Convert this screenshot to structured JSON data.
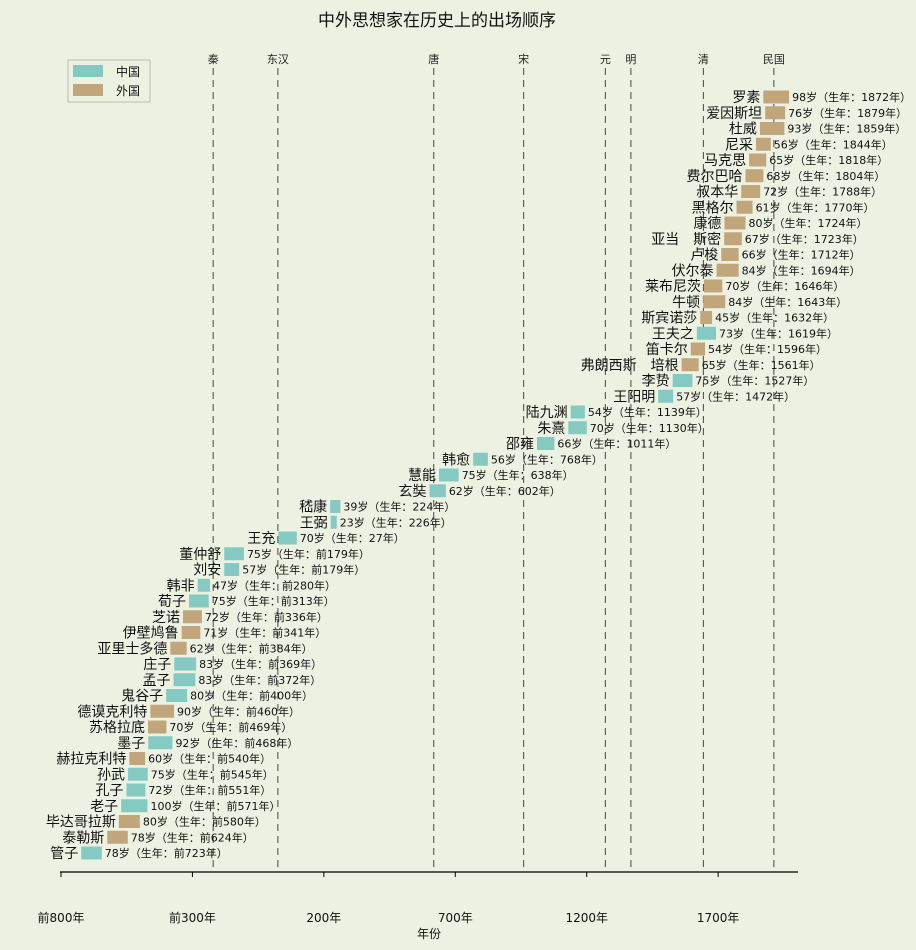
{
  "chart_data": {
    "type": "bar",
    "title": "中外思想家在历史上的出场顺序",
    "xlabel": "年份",
    "ylabel": "",
    "xlim": [
      -800,
      2000
    ],
    "xticks": [
      {
        "value": -800,
        "label": "前800年"
      },
      {
        "value": -300,
        "label": "前300年"
      },
      {
        "value": 200,
        "label": "200年"
      },
      {
        "value": 700,
        "label": "700年"
      },
      {
        "value": 1200,
        "label": "1200年"
      },
      {
        "value": 1700,
        "label": "1700年"
      }
    ],
    "legend": {
      "position": "top-left",
      "entries": [
        {
          "key": "china",
          "label": "中国"
        },
        {
          "key": "foreign",
          "label": "外国"
        }
      ]
    },
    "colors": {
      "china": "#85cac2",
      "foreign": "#c0a67a",
      "dynasty_line": "#555555",
      "axis": "#000000"
    },
    "dynasties": [
      {
        "name": "秦",
        "year": -221
      },
      {
        "name": "东汉",
        "year": 25
      },
      {
        "name": "唐",
        "year": 618
      },
      {
        "name": "宋",
        "year": 960
      },
      {
        "name": "元",
        "year": 1271
      },
      {
        "name": "明",
        "year": 1368
      },
      {
        "name": "清",
        "year": 1644
      },
      {
        "name": "民国",
        "year": 1912
      }
    ],
    "thinkers": [
      {
        "name": "罗素",
        "type": "foreign",
        "birth": 1872,
        "age": 98,
        "label": "98岁（生年：1872年）"
      },
      {
        "name": "爱因斯坦",
        "type": "foreign",
        "birth": 1879,
        "age": 76,
        "label": "76岁（生年：1879年）"
      },
      {
        "name": "杜威",
        "type": "foreign",
        "birth": 1859,
        "age": 93,
        "label": "93岁（生年：1859年）"
      },
      {
        "name": "尼采",
        "type": "foreign",
        "birth": 1844,
        "age": 56,
        "label": "56岁（生年：1844年）"
      },
      {
        "name": "马克思",
        "type": "foreign",
        "birth": 1818,
        "age": 65,
        "label": "65岁（生年：1818年）"
      },
      {
        "name": "费尔巴哈",
        "type": "foreign",
        "birth": 1804,
        "age": 68,
        "label": "68岁（生年：1804年）"
      },
      {
        "name": "叔本华",
        "type": "foreign",
        "birth": 1788,
        "age": 72,
        "label": "72岁（生年：1788年）"
      },
      {
        "name": "黑格尔",
        "type": "foreign",
        "birth": 1770,
        "age": 61,
        "label": "61岁（生年：1770年）"
      },
      {
        "name": "康德",
        "type": "foreign",
        "birth": 1724,
        "age": 80,
        "label": "80岁（生年：1724年）"
      },
      {
        "name": "亚当　斯密",
        "type": "foreign",
        "birth": 1723,
        "age": 67,
        "label": "67岁（生年：1723年）"
      },
      {
        "name": "卢梭",
        "type": "foreign",
        "birth": 1712,
        "age": 66,
        "label": "66岁（生年：1712年）"
      },
      {
        "name": "伏尔泰",
        "type": "foreign",
        "birth": 1694,
        "age": 84,
        "label": "84岁（生年：1694年）"
      },
      {
        "name": "莱布尼茨",
        "type": "foreign",
        "birth": 1646,
        "age": 70,
        "label": "70岁（生年：1646年）"
      },
      {
        "name": "牛顿",
        "type": "foreign",
        "birth": 1643,
        "age": 84,
        "label": "84岁（生年：1643年）"
      },
      {
        "name": "斯宾诺莎",
        "type": "foreign",
        "birth": 1632,
        "age": 45,
        "label": "45岁（生年：1632年）"
      },
      {
        "name": "王夫之",
        "type": "china",
        "birth": 1619,
        "age": 73,
        "label": "73岁（生年：1619年）"
      },
      {
        "name": "笛卡尔",
        "type": "foreign",
        "birth": 1596,
        "age": 54,
        "label": "54岁（生年：1596年）"
      },
      {
        "name": "弗朗西斯　培根",
        "type": "foreign",
        "birth": 1561,
        "age": 65,
        "label": "65岁（生年：1561年）"
      },
      {
        "name": "李贽",
        "type": "china",
        "birth": 1527,
        "age": 75,
        "label": "75岁（生年：1527年）"
      },
      {
        "name": "王阳明",
        "type": "china",
        "birth": 1472,
        "age": 57,
        "label": "57岁（生年：1472年）"
      },
      {
        "name": "陆九渊",
        "type": "china",
        "birth": 1139,
        "age": 54,
        "label": "54岁（生年：1139年）"
      },
      {
        "name": "朱熹",
        "type": "china",
        "birth": 1130,
        "age": 70,
        "label": "70岁（生年：1130年）"
      },
      {
        "name": "邵雍",
        "type": "china",
        "birth": 1011,
        "age": 66,
        "label": "66岁（生年：1011年）"
      },
      {
        "name": "韩愈",
        "type": "china",
        "birth": 768,
        "age": 56,
        "label": "56岁（生年：768年）"
      },
      {
        "name": "慧能",
        "type": "china",
        "birth": 638,
        "age": 75,
        "label": "75岁（生年：638年）"
      },
      {
        "name": "玄奘",
        "type": "china",
        "birth": 602,
        "age": 62,
        "label": "62岁（生年：602年）"
      },
      {
        "name": "嵇康",
        "type": "china",
        "birth": 224,
        "age": 39,
        "label": "39岁（生年：224年）"
      },
      {
        "name": "王弼",
        "type": "china",
        "birth": 226,
        "age": 23,
        "label": "23岁（生年：226年）"
      },
      {
        "name": "王充",
        "type": "china",
        "birth": 27,
        "age": 70,
        "label": "70岁（生年：27年）"
      },
      {
        "name": "董仲舒",
        "type": "china",
        "birth": -179,
        "age": 75,
        "label": "75岁（生年：前179年）"
      },
      {
        "name": "刘安",
        "type": "china",
        "birth": -179,
        "age": 57,
        "label": "57岁（生年：前179年）"
      },
      {
        "name": "韩非",
        "type": "china",
        "birth": -280,
        "age": 47,
        "label": "47岁（生年：前280年）"
      },
      {
        "name": "荀子",
        "type": "china",
        "birth": -313,
        "age": 75,
        "label": "75岁（生年：前313年）"
      },
      {
        "name": "芝诺",
        "type": "foreign",
        "birth": -336,
        "age": 72,
        "label": "72岁（生年：前336年）"
      },
      {
        "name": "伊壁鸠鲁",
        "type": "foreign",
        "birth": -341,
        "age": 71,
        "label": "71岁（生年：前341年）"
      },
      {
        "name": "亚里士多德",
        "type": "foreign",
        "birth": -384,
        "age": 62,
        "label": "62岁（生年：前384年）"
      },
      {
        "name": "庄子",
        "type": "china",
        "birth": -369,
        "age": 83,
        "label": "83岁（生年：前369年）"
      },
      {
        "name": "孟子",
        "type": "china",
        "birth": -372,
        "age": 83,
        "label": "83岁（生年：前372年）"
      },
      {
        "name": "鬼谷子",
        "type": "china",
        "birth": -400,
        "age": 80,
        "label": "80岁（生年：前400年）"
      },
      {
        "name": "德谟克利特",
        "type": "foreign",
        "birth": -460,
        "age": 90,
        "label": "90岁（生年：前460年）"
      },
      {
        "name": "苏格拉底",
        "type": "foreign",
        "birth": -469,
        "age": 70,
        "label": "70岁（生年：前469年）"
      },
      {
        "name": "墨子",
        "type": "china",
        "birth": -468,
        "age": 92,
        "label": "92岁（生年：前468年）"
      },
      {
        "name": "赫拉克利特",
        "type": "foreign",
        "birth": -540,
        "age": 60,
        "label": "60岁（生年：前540年）"
      },
      {
        "name": "孙武",
        "type": "china",
        "birth": -545,
        "age": 75,
        "label": "75岁（生年：前545年）"
      },
      {
        "name": "孔子",
        "type": "china",
        "birth": -551,
        "age": 72,
        "label": "72岁（生年：前551年）"
      },
      {
        "name": "老子",
        "type": "china",
        "birth": -571,
        "age": 100,
        "label": "100岁（生年：前571年）"
      },
      {
        "name": "毕达哥拉斯",
        "type": "foreign",
        "birth": -580,
        "age": 80,
        "label": "80岁（生年：前580年）"
      },
      {
        "name": "泰勒斯",
        "type": "foreign",
        "birth": -624,
        "age": 78,
        "label": "78岁（生年：前624年）"
      },
      {
        "name": "管子",
        "type": "china",
        "birth": -723,
        "age": 78,
        "label": "78岁（生年：前723年）"
      }
    ]
  }
}
